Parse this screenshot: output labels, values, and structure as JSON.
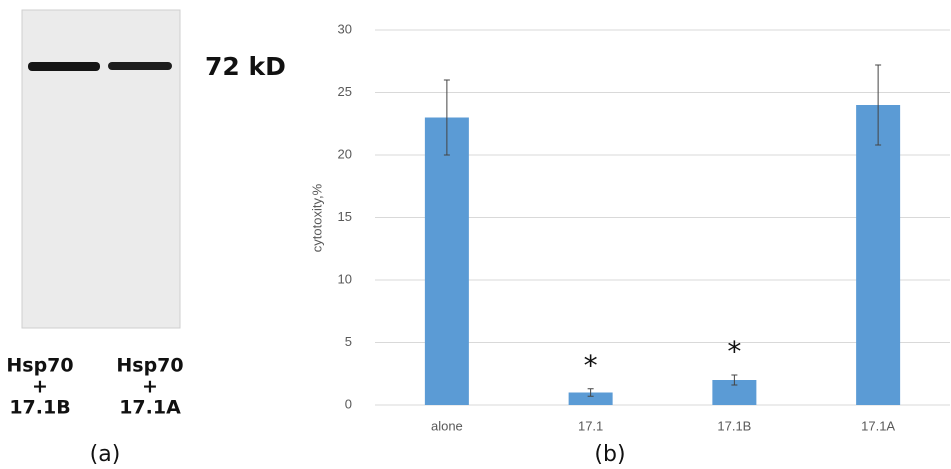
{
  "chart_data": {
    "type": "bar",
    "panel_label": "(b)",
    "y_label": "cytotoxity,%",
    "categories": [
      "alone",
      "17.1",
      "17.1B",
      "17.1A"
    ],
    "values": [
      23,
      1,
      2,
      24
    ],
    "errors": [
      3,
      0.3,
      0.4,
      3.2
    ],
    "color": "#5b9bd5",
    "ylim": [
      0,
      30
    ],
    "yticks": [
      0,
      5,
      10,
      15,
      20,
      25,
      30
    ],
    "grid": true,
    "annotations": [
      {
        "text": "*",
        "x": "17.1"
      },
      {
        "text": "*",
        "x": "17.1B"
      }
    ]
  },
  "blot": {
    "band_label": "72 kD",
    "panel_label": "(a)",
    "lanes": [
      [
        "Hsp70",
        "+",
        "17.1B"
      ],
      [
        "Hsp70",
        "+",
        "17.1A"
      ]
    ]
  }
}
